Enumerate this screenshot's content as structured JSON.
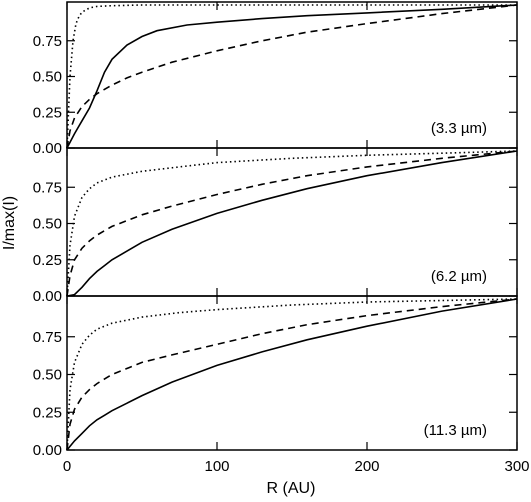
{
  "chart_data": {
    "type": "line",
    "xlabel": "R (AU)",
    "ylabel": "I/max(I)",
    "xlim": [
      0,
      300
    ],
    "ylim": [
      0,
      1.0
    ],
    "x_ticks": [
      0,
      100,
      200,
      300
    ],
    "y_ticks": [
      0.0,
      0.25,
      0.5,
      0.75
    ],
    "x_tick_labels": [
      "0",
      "100",
      "200",
      "300"
    ],
    "y_tick_labels": [
      "0.00",
      "0.25",
      "0.50",
      "0.75"
    ],
    "grid": false,
    "line_styles": [
      "solid",
      "dashed",
      "dotted"
    ],
    "panels": [
      {
        "label": "(3.3 µm)",
        "series": [
          {
            "style": "solid",
            "x": [
              0,
              5,
              10,
              15,
              20,
              25,
              30,
              40,
              50,
              60,
              80,
              100,
              130,
              160,
              200,
              250,
              300
            ],
            "y": [
              0.0,
              0.1,
              0.19,
              0.28,
              0.4,
              0.53,
              0.62,
              0.72,
              0.78,
              0.82,
              0.86,
              0.88,
              0.905,
              0.925,
              0.945,
              0.97,
              1.0
            ]
          },
          {
            "style": "dashed",
            "x": [
              0,
              2,
              5,
              10,
              15,
              20,
              30,
              40,
              50,
              70,
              100,
              130,
              160,
              200,
              250,
              300
            ],
            "y": [
              0.0,
              0.12,
              0.21,
              0.29,
              0.34,
              0.38,
              0.44,
              0.49,
              0.53,
              0.6,
              0.68,
              0.75,
              0.81,
              0.87,
              0.94,
              1.0
            ]
          },
          {
            "style": "dotted",
            "x": [
              0,
              2,
              4,
              6,
              8,
              10,
              15,
              20,
              30,
              50,
              100,
              200,
              300
            ],
            "y": [
              0.0,
              0.5,
              0.75,
              0.87,
              0.92,
              0.95,
              0.98,
              0.99,
              0.995,
              1.0,
              1.0,
              1.0,
              1.0
            ]
          }
        ]
      },
      {
        "label": "(6.2 µm)",
        "series": [
          {
            "style": "solid",
            "x": [
              0,
              5,
              10,
              15,
              20,
              25,
              30,
              40,
              50,
              70,
              100,
              130,
              160,
              200,
              250,
              300
            ],
            "y": [
              0.0,
              0.01,
              0.06,
              0.12,
              0.17,
              0.21,
              0.25,
              0.31,
              0.37,
              0.46,
              0.57,
              0.66,
              0.74,
              0.83,
              0.92,
              1.0
            ]
          },
          {
            "style": "dashed",
            "x": [
              0,
              2,
              5,
              10,
              15,
              20,
              30,
              50,
              70,
              100,
              130,
              160,
              200,
              250,
              300
            ],
            "y": [
              0.0,
              0.14,
              0.25,
              0.33,
              0.38,
              0.42,
              0.48,
              0.56,
              0.62,
              0.7,
              0.77,
              0.83,
              0.89,
              0.95,
              1.0
            ]
          },
          {
            "style": "dotted",
            "x": [
              0,
              2,
              5,
              10,
              15,
              20,
              30,
              50,
              75,
              100,
              150,
              200,
              250,
              300
            ],
            "y": [
              0.0,
              0.35,
              0.55,
              0.68,
              0.74,
              0.78,
              0.82,
              0.86,
              0.89,
              0.92,
              0.95,
              0.97,
              0.985,
              1.0
            ]
          }
        ]
      },
      {
        "label": "(11.3 µm)",
        "series": [
          {
            "style": "solid",
            "x": [
              0,
              5,
              10,
              15,
              20,
              25,
              30,
              40,
              50,
              70,
              100,
              130,
              160,
              200,
              250,
              300
            ],
            "y": [
              0.0,
              0.06,
              0.11,
              0.16,
              0.2,
              0.23,
              0.26,
              0.31,
              0.36,
              0.45,
              0.56,
              0.65,
              0.73,
              0.82,
              0.92,
              1.0
            ]
          },
          {
            "style": "dashed",
            "x": [
              0,
              2,
              5,
              10,
              15,
              20,
              30,
              50,
              70,
              100,
              130,
              160,
              200,
              250,
              300
            ],
            "y": [
              0.0,
              0.17,
              0.27,
              0.35,
              0.4,
              0.44,
              0.5,
              0.58,
              0.63,
              0.7,
              0.77,
              0.83,
              0.89,
              0.95,
              1.0
            ]
          },
          {
            "style": "dotted",
            "x": [
              0,
              2,
              5,
              10,
              15,
              20,
              30,
              50,
              75,
              100,
              150,
              200,
              250,
              300
            ],
            "y": [
              0.0,
              0.4,
              0.58,
              0.7,
              0.76,
              0.8,
              0.84,
              0.88,
              0.91,
              0.93,
              0.96,
              0.98,
              0.99,
              1.0
            ]
          }
        ]
      }
    ]
  }
}
